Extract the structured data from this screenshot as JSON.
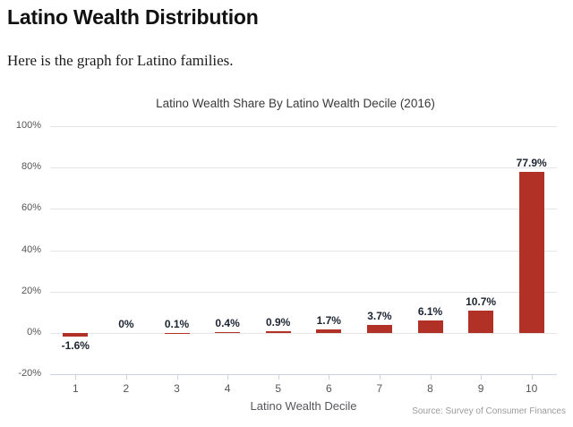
{
  "page": {
    "heading": "Latino Wealth Distribution",
    "intro": "Here is the graph for Latino families."
  },
  "chart_data": {
    "type": "bar",
    "title": "Latino Wealth Share By Latino Wealth Decile (2016)",
    "xlabel": "Latino Wealth Decile",
    "ylabel": "",
    "categories": [
      "1",
      "2",
      "3",
      "4",
      "5",
      "6",
      "7",
      "8",
      "9",
      "10"
    ],
    "values": [
      -1.6,
      0,
      0.1,
      0.4,
      0.9,
      1.7,
      3.7,
      6.1,
      10.7,
      77.9
    ],
    "value_labels": [
      "-1.6%",
      "0%",
      "0.1%",
      "0.4%",
      "0.9%",
      "1.7%",
      "3.7%",
      "6.1%",
      "10.7%",
      "77.9%"
    ],
    "ylim": [
      -20,
      100
    ],
    "yticks": [
      {
        "v": 100,
        "label": "100%"
      },
      {
        "v": 80,
        "label": "80%"
      },
      {
        "v": 60,
        "label": "60%"
      },
      {
        "v": 40,
        "label": "40%"
      },
      {
        "v": 20,
        "label": "20%"
      },
      {
        "v": 0,
        "label": "0%"
      },
      {
        "v": -20,
        "label": "-20%"
      }
    ],
    "grid": true,
    "legend": false,
    "source": "Source: Survey of Consumer Finances",
    "colors": {
      "bar": "#b23127",
      "grid": "#e5e5e5",
      "axis": "#c8d2e2",
      "tick_label": "#555555",
      "value_label": "#1b2430",
      "title": "#3a3a3a",
      "source": "#9b9b9b"
    }
  }
}
